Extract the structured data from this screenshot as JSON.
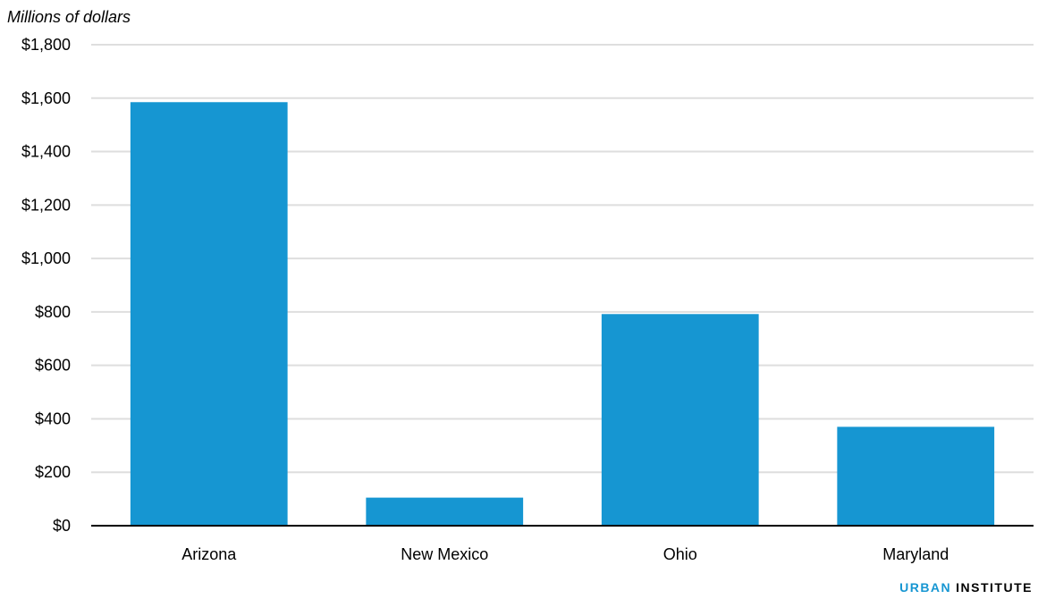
{
  "chart_data": {
    "type": "bar",
    "title": "",
    "xlabel": "",
    "ylabel": "Millions of dollars",
    "categories": [
      "Arizona",
      "New Mexico",
      "Ohio",
      "Maryland"
    ],
    "values": [
      1585,
      105,
      792,
      370
    ],
    "ylim": [
      0,
      1800
    ],
    "yticks": [
      0,
      200,
      400,
      600,
      800,
      1000,
      1200,
      1400,
      1600,
      1800
    ],
    "ytick_labels": [
      "$0",
      "$200",
      "$400",
      "$600",
      "$800",
      "$1,000",
      "$1,200",
      "$1,400",
      "$1,600",
      "$1,800"
    ],
    "grid": true,
    "bar_color": "#1696d2"
  },
  "branding": {
    "logo_part1": "URBAN",
    "logo_part2": "INSTITUTE",
    "logo_color1": "#1696d2",
    "logo_color2": "#000000"
  }
}
